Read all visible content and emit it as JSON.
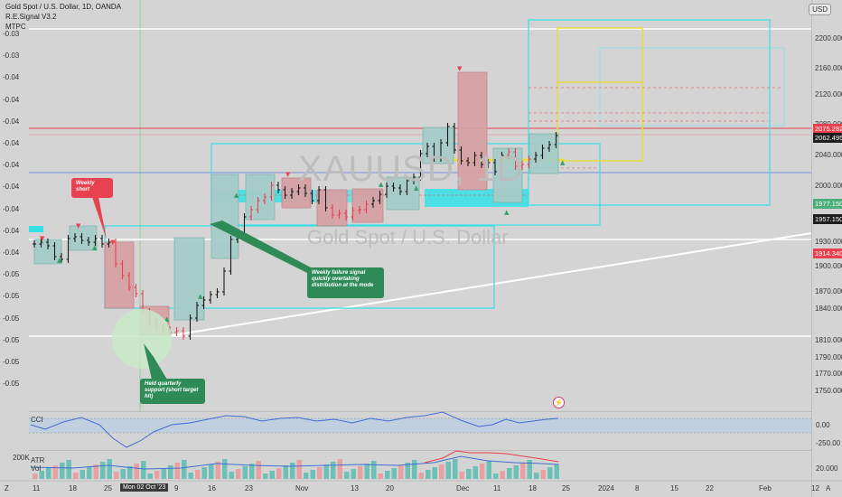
{
  "header": {
    "symbol_line": "Gold Spot / U.S. Dollar, 1D, OANDA",
    "indicator_1": "R.E.Signal V3.2",
    "indicator_2": "MTPC",
    "currency_button": "USD"
  },
  "watermark": {
    "ticker": "XAUUSD, 1D",
    "name": "Gold Spot / U.S. Dollar"
  },
  "left_axis": [
    "-0.03",
    "-0.03",
    "-0.04",
    "-0.04",
    "-0.04",
    "-0.04",
    "-0.04",
    "-0.04",
    "-0.04",
    "-0.04",
    "-0.04",
    "-0.05",
    "-0.05",
    "-0.05",
    "-0.05",
    "-0.05",
    "-0.05"
  ],
  "right_axis": [
    "2200.000",
    "2160.000",
    "2120.000",
    "2080.000",
    "2040.000",
    "2000.000",
    "1960.000",
    "1930.000",
    "1900.000",
    "1870.000",
    "1840.000",
    "1810.000",
    "1790.000",
    "1770.000",
    "1750.000"
  ],
  "price_tags": [
    {
      "value": "2075.282",
      "color": "#e8414f"
    },
    {
      "value": "2062.495",
      "color": "#1e1e1e"
    },
    {
      "value": "1977.150",
      "color": "#4caf7a"
    },
    {
      "value": "1957.150",
      "color": "#1e1e1e"
    },
    {
      "value": "1914.340",
      "color": "#e8414f"
    }
  ],
  "annotations": {
    "weekly_short": "Weekly short",
    "weekly_failure": "Weekly failure signal quickly overtaking distribution at the mode",
    "held_support": "Held quarterly support (short target hit)"
  },
  "cci": {
    "label": "CCI",
    "ticks": [
      "0.00",
      "-250.00"
    ]
  },
  "atr": {
    "label_1": "ATR",
    "label_2": "Vol",
    "left_value": "200K",
    "right_value": "20.000"
  },
  "x_axis": {
    "labels": [
      "11",
      "18",
      "25",
      "9",
      "16",
      "23",
      "Nov",
      "13",
      "20",
      "Dec",
      "11",
      "18",
      "25",
      "2024",
      "8",
      "15",
      "22",
      "Feb",
      "12"
    ],
    "highlight": "Mon 02 Oct '23",
    "corner_left": "Z",
    "corner_right": "A"
  },
  "colors": {
    "bull_box": "#a6ccc8",
    "bear_box": "#d7a1a4",
    "cyan": "#34e0e8",
    "yellow": "#e9dc3a",
    "red_line": "#e8414f"
  }
}
